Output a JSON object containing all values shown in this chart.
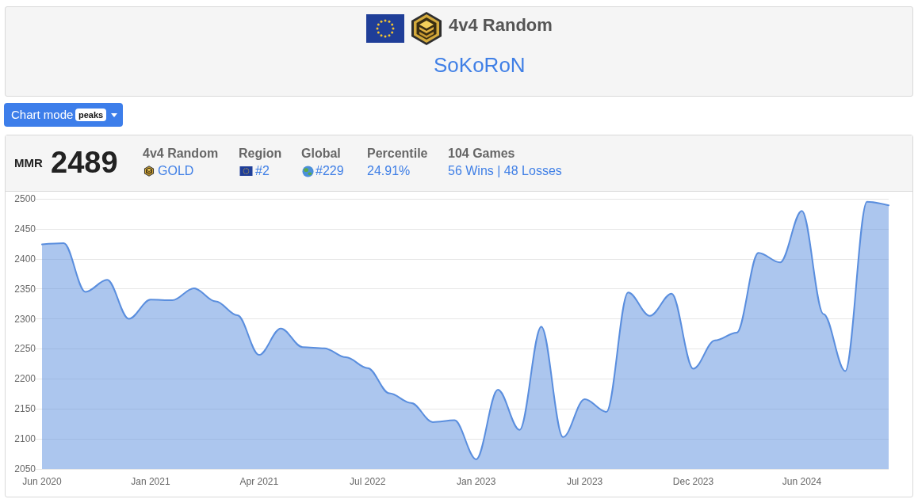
{
  "chart_data": {
    "type": "area",
    "title": "4v4 Random",
    "subtitle": "SoKoRoN",
    "annotations": [
      "Chart mode",
      "peaks",
      "MMR",
      "2489",
      "4v4 Random",
      "GOLD",
      "Region",
      "#2",
      "Global",
      "#229",
      "Percentile",
      "24.91%",
      "104 Games",
      "56 Wins | 48 Losses"
    ],
    "categories": [
      "Jun 2020",
      null,
      null,
      null,
      null,
      "Jan 2021",
      null,
      null,
      null,
      null,
      "Apr 2021",
      null,
      null,
      null,
      null,
      "Jul 2022",
      null,
      null,
      null,
      null,
      "Jan 2023",
      null,
      null,
      null,
      null,
      "Jul 2023",
      null,
      null,
      null,
      null,
      "Dec 2023",
      null,
      null,
      null,
      null,
      "Jun 2024",
      null,
      null,
      null,
      null
    ],
    "values": [
      2424,
      2426,
      2345,
      2365,
      2300,
      2332,
      2331,
      2351,
      2329,
      2306,
      2240,
      2284,
      2253,
      2251,
      2236,
      2218,
      2176,
      2160,
      2128,
      2131,
      2066,
      2182,
      2115,
      2287,
      2103,
      2166,
      2145,
      2344,
      2305,
      2342,
      2217,
      2264,
      2277,
      2410,
      2394,
      2480,
      2308,
      2213,
      2495,
      2489
    ],
    "color": "#5a8ede",
    "ylim": [
      2050,
      2500
    ],
    "yticks": [
      2050,
      2100,
      2150,
      2200,
      2250,
      2300,
      2350,
      2400,
      2450,
      2500
    ],
    "grid": "y",
    "marker": "none",
    "line_style": "solid"
  }
}
